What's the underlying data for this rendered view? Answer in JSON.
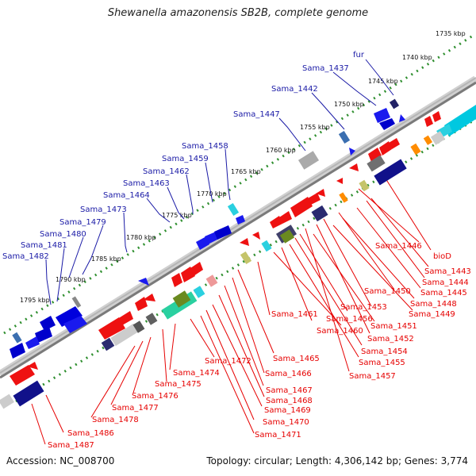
{
  "title": "Shewanella amazonensis SB2B, complete genome",
  "accession": "Accession: NC_008700",
  "summary": "Topology: circular; Length: 4,306,142 bp; Genes: 3,774",
  "colors": {
    "forward_label": "#1a1aa6",
    "reverse_label": "#e60000",
    "forward_gene": "#1a1aee",
    "reverse_gene": "#ee1111",
    "dots": "#2f8f2f",
    "backbone": "#8a8a8a"
  },
  "scale_labels": [
    "1735 kbp",
    "1740 kbp",
    "1745 kbp",
    "1750 kbp",
    "1755 kbp",
    "1760 kbp",
    "1765 kbp",
    "1770 kbp",
    "1775 kbp",
    "1780 kbp",
    "1785 kbp",
    "1790 kbp",
    "1795 kbp"
  ],
  "forward_genes": [
    "fur",
    "Sama_1437",
    "Sama_1442",
    "Sama_1447",
    "Sama_1458",
    "Sama_1459",
    "Sama_1462",
    "Sama_1463",
    "Sama_1464",
    "Sama_1473",
    "Sama_1479",
    "Sama_1480",
    "Sama_1481",
    "Sama_1482"
  ],
  "reverse_genes": [
    "bioD",
    "Sama_1443",
    "Sama_1444",
    "Sama_1445",
    "Sama_1446",
    "Sama_1448",
    "Sama_1449",
    "Sama_1450",
    "Sama_1451",
    "Sama_1452",
    "Sama_1453",
    "Sama_1454",
    "Sama_1455",
    "Sama_1456",
    "Sama_1457",
    "Sama_1460",
    "Sama_1461",
    "Sama_1465",
    "Sama_1466",
    "Sama_1467",
    "Sama_1468",
    "Sama_1469",
    "Sama_1470",
    "Sama_1471",
    "Sama_1472",
    "Sama_1474",
    "Sama_1475",
    "Sama_1476",
    "Sama_1477",
    "Sama_1478",
    "Sama_1486",
    "Sama_1487"
  ]
}
